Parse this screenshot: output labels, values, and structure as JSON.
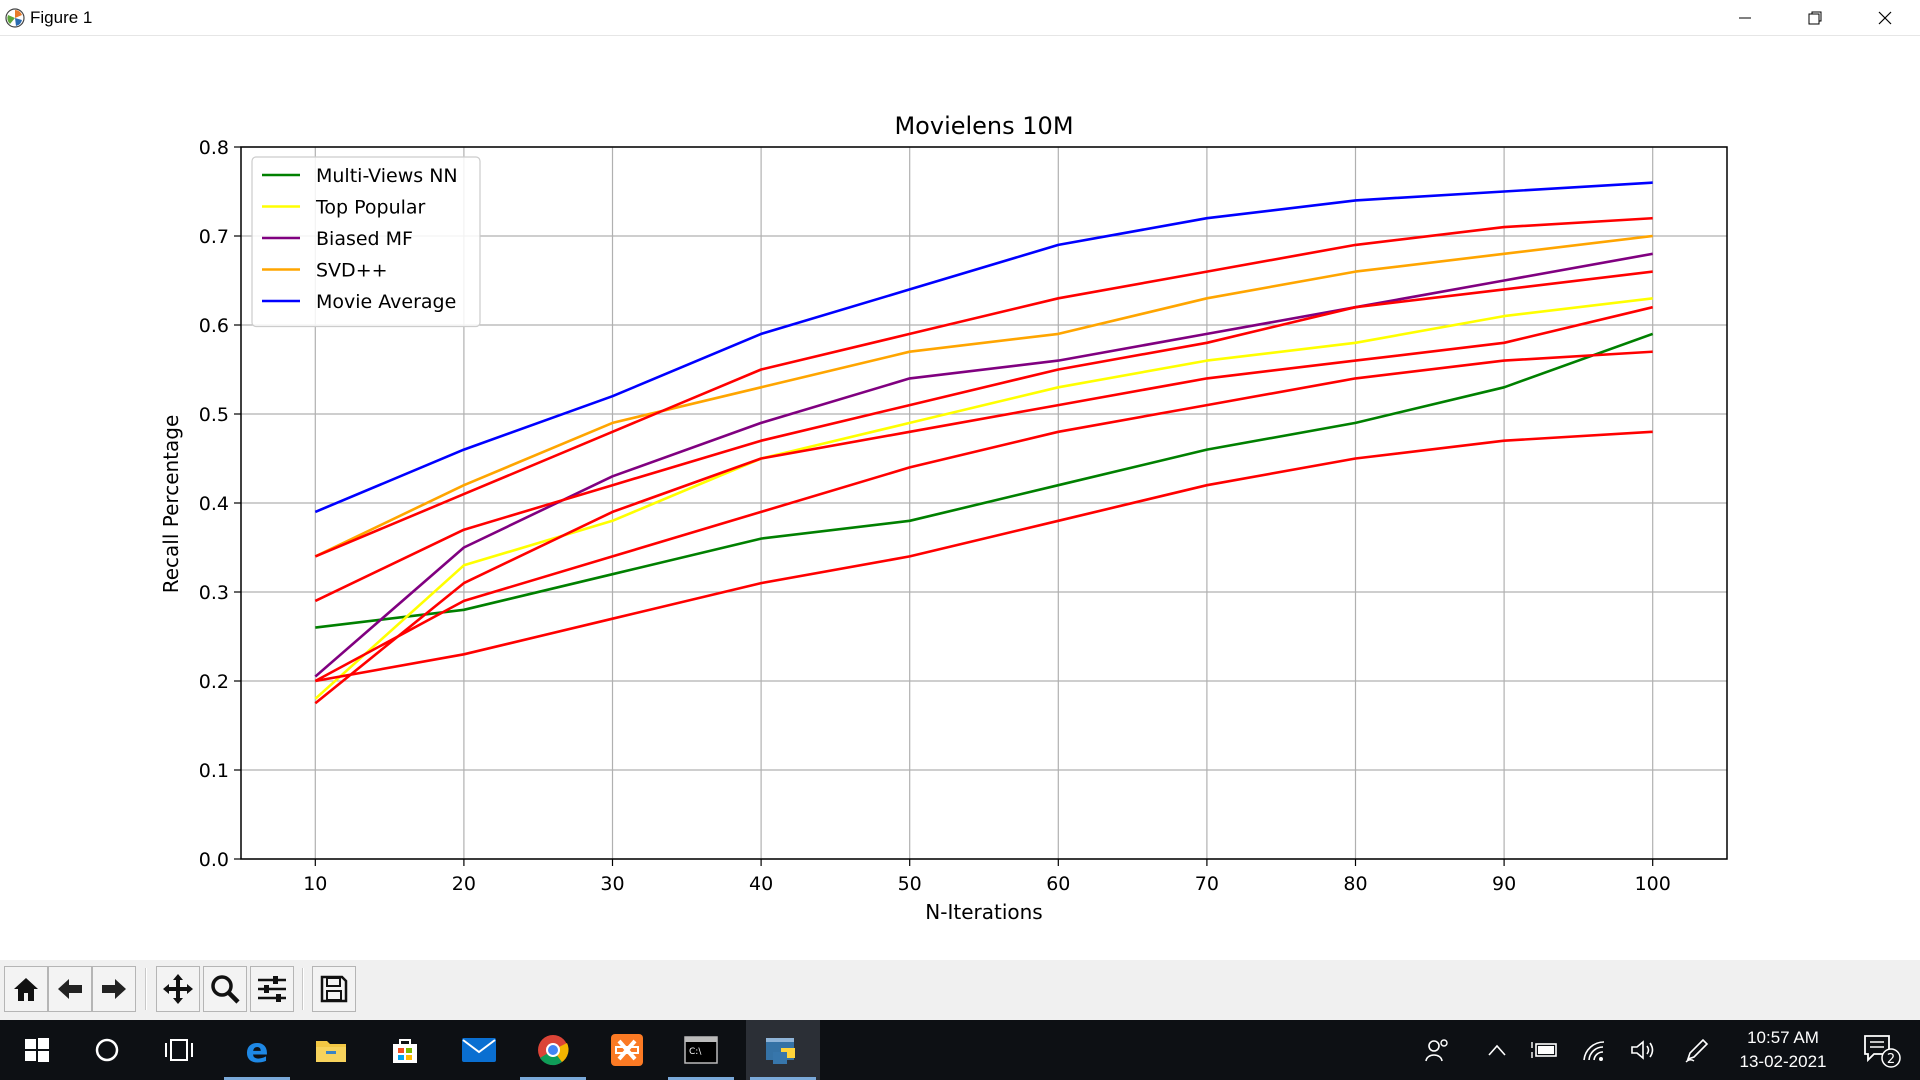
{
  "window": {
    "title": "Figure 1",
    "controls": [
      "minimize",
      "restore",
      "close"
    ]
  },
  "chart_data": {
    "type": "line",
    "title": "Movielens 10M",
    "xlabel": "N-Iterations",
    "ylabel": "Recall Percentage",
    "x": [
      10,
      20,
      30,
      40,
      50,
      60,
      70,
      80,
      90,
      100
    ],
    "xlim": [
      5,
      105
    ],
    "ylim": [
      0.0,
      0.8
    ],
    "xticks": [
      "10",
      "20",
      "30",
      "40",
      "50",
      "60",
      "70",
      "80",
      "90",
      "100"
    ],
    "yticks": [
      "0.0",
      "0.1",
      "0.2",
      "0.3",
      "0.4",
      "0.5",
      "0.6",
      "0.7",
      "0.8"
    ],
    "grid": true,
    "legend_position": "upper-left",
    "series": [
      {
        "name": "Multi-Views NN",
        "color": "#008000",
        "values": [
          0.26,
          0.28,
          0.32,
          0.36,
          0.38,
          0.42,
          0.46,
          0.49,
          0.53,
          0.59
        ]
      },
      {
        "name": "Top Popular",
        "color": "#ffff00",
        "values": [
          0.18,
          0.33,
          0.38,
          0.45,
          0.49,
          0.53,
          0.56,
          0.58,
          0.61,
          0.63
        ]
      },
      {
        "name": "Biased MF",
        "color": "#800080",
        "values": [
          0.205,
          0.35,
          0.43,
          0.49,
          0.54,
          0.56,
          0.59,
          0.62,
          0.65,
          0.68
        ]
      },
      {
        "name": "SVD++",
        "color": "#ffa500",
        "values": [
          0.34,
          0.42,
          0.49,
          0.53,
          0.57,
          0.59,
          0.63,
          0.66,
          0.68,
          0.7
        ]
      },
      {
        "name": "Movie Average",
        "color": "#0000ff",
        "values": [
          0.39,
          0.46,
          0.52,
          0.59,
          0.64,
          0.69,
          0.72,
          0.74,
          0.75,
          0.76
        ]
      },
      {
        "color": "#ff0000",
        "values": [
          0.34,
          0.41,
          0.48,
          0.55,
          0.59,
          0.63,
          0.66,
          0.69,
          0.71,
          0.72
        ]
      },
      {
        "color": "#ff0000",
        "values": [
          0.29,
          0.37,
          0.42,
          0.47,
          0.51,
          0.55,
          0.58,
          0.62,
          0.64,
          0.66
        ]
      },
      {
        "color": "#ff0000",
        "values": [
          0.175,
          0.31,
          0.39,
          0.45,
          0.48,
          0.51,
          0.54,
          0.56,
          0.58,
          0.62
        ]
      },
      {
        "color": "#ff0000",
        "values": [
          0.2,
          0.29,
          0.34,
          0.39,
          0.44,
          0.48,
          0.51,
          0.54,
          0.56,
          0.57
        ]
      },
      {
        "color": "#ff0000",
        "values": [
          0.2,
          0.23,
          0.27,
          0.31,
          0.34,
          0.38,
          0.42,
          0.45,
          0.47,
          0.48
        ]
      }
    ]
  },
  "toolbar": {
    "buttons": [
      "home-icon",
      "back-icon",
      "forward-icon",
      "pan-icon",
      "zoom-icon",
      "configure-subplots-icon",
      "save-icon"
    ]
  },
  "taskbar": {
    "apps": [
      "start-icon",
      "search-icon",
      "task-view-icon",
      "edge-icon",
      "file-explorer-icon",
      "microsoft-store-icon",
      "mail-icon",
      "chrome-icon",
      "xampp-icon",
      "command-prompt-icon",
      "python-icon"
    ],
    "time": "10:57 AM",
    "date": "13-02-2021",
    "notification_count": "2"
  }
}
